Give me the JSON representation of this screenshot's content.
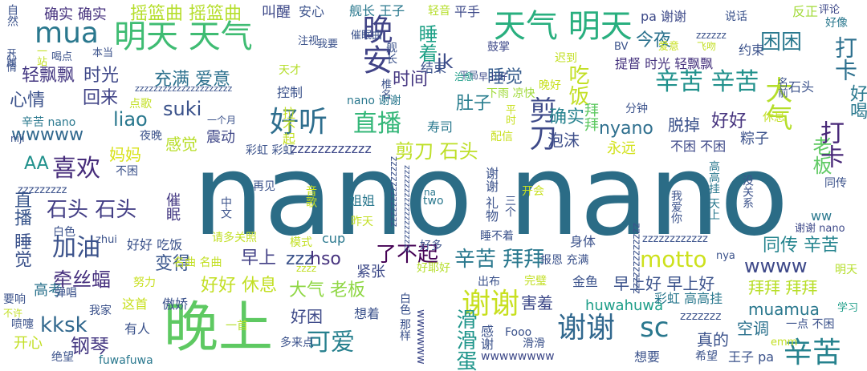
{
  "words": [
    {
      "text": "nano nano",
      "color": "#2b6c86"
    },
    {
      "text": "晚上",
      "color": "#5ec962"
    },
    {
      "text": "明天 天气",
      "color": "#3fbc73"
    },
    {
      "text": "天气 明天",
      "color": "#29af7f"
    },
    {
      "text": "mua",
      "color": "#2a788e"
    },
    {
      "text": "晚安",
      "color": "#414487"
    },
    {
      "text": "好听",
      "color": "#2e6e8e"
    },
    {
      "text": "直播",
      "color": "#35b779"
    },
    {
      "text": "睡着",
      "color": "#1fa187"
    },
    {
      "text": "剪刀",
      "color": "#3e4a89"
    },
    {
      "text": "大气",
      "color": "#b5de2b"
    },
    {
      "text": "老板",
      "color": "#5ec962"
    },
    {
      "text": "打卡",
      "color": "#2d708e"
    },
    {
      "text": "打卡",
      "color": "#482878"
    },
    {
      "text": "困困",
      "color": "#2a788e"
    },
    {
      "text": "辛苦 辛苦",
      "color": "#21918c"
    },
    {
      "text": "好喝",
      "color": "#2a788e"
    },
    {
      "text": "谢谢",
      "color": "#c8e020"
    },
    {
      "text": "谢谢",
      "color": "#31688e"
    },
    {
      "text": "辛苦",
      "color": "#26828e"
    },
    {
      "text": "sc",
      "color": "#2a788e"
    },
    {
      "text": "motto",
      "color": "#cde11d"
    },
    {
      "text": "可爱",
      "color": "#27808e"
    },
    {
      "text": "滑滑蛋",
      "color": "#1f958b"
    },
    {
      "text": "喜欢",
      "color": "#472d7b"
    },
    {
      "text": "加油",
      "color": "#3b528b"
    },
    {
      "text": "kksk",
      "color": "#31688e"
    },
    {
      "text": "wwww",
      "color": "#3e4989"
    },
    {
      "text": "同传 辛苦",
      "color": "#25848e"
    },
    {
      "text": "辛苦 拜拜",
      "color": "#2a788e"
    },
    {
      "text": "了不起",
      "color": "#440154"
    },
    {
      "text": "早上",
      "color": "#424086"
    },
    {
      "text": "zzz",
      "color": "#3b528b"
    },
    {
      "text": "hso",
      "color": "#46337e"
    },
    {
      "text": "大气 老板",
      "color": "#8fd744"
    },
    {
      "text": "好困",
      "color": "#3e4a89"
    },
    {
      "text": "石头 石头",
      "color": "#433e85"
    },
    {
      "text": "牵丝蝠",
      "color": "#46307e"
    },
    {
      "text": "变得",
      "color": "#39568c"
    },
    {
      "text": "好好 休息",
      "color": "#c2df23"
    },
    {
      "text": "钢琴",
      "color": "#453882"
    },
    {
      "text": "确实",
      "color": "#26828e"
    },
    {
      "text": "好好",
      "color": "#46337e"
    },
    {
      "text": "剪刀 石头",
      "color": "#bddf26"
    },
    {
      "text": "肚子",
      "color": "#287d8e"
    },
    {
      "text": "时间",
      "color": "#453781"
    },
    {
      "text": "jk",
      "color": "#3d4d8a"
    },
    {
      "text": "睡觉",
      "color": "#365c8d"
    },
    {
      "text": "今夜",
      "color": "#2c728e"
    },
    {
      "text": "吃饭",
      "color": "#c2df23"
    },
    {
      "text": "充满 爱意",
      "color": "#2d718e"
    },
    {
      "text": "suki",
      "color": "#3b528b"
    },
    {
      "text": "liao",
      "color": "#2a788e"
    },
    {
      "text": "回来",
      "color": "#414487"
    },
    {
      "text": "时光",
      "color": "#3f4889"
    },
    {
      "text": "轻飘飘",
      "color": "#453882"
    },
    {
      "text": "心情",
      "color": "#3b528b"
    },
    {
      "text": "wwwww",
      "color": "#31688e"
    },
    {
      "text": "感觉",
      "color": "#b8de29"
    },
    {
      "text": "震动",
      "color": "#3f4788"
    },
    {
      "text": "AA",
      "color": "#21918c"
    },
    {
      "text": "妈妈",
      "color": "#d8e219"
    },
    {
      "text": "nyano",
      "color": "#2e6f8e"
    },
    {
      "text": "拜拜",
      "color": "#5ec962"
    },
    {
      "text": "泡沫",
      "color": "#3d4e8a"
    },
    {
      "text": "粽子",
      "color": "#3b528b"
    },
    {
      "text": "脱掉",
      "color": "#3b528b"
    },
    {
      "text": "不困 不困",
      "color": "#3e4989"
    },
    {
      "text": "永远",
      "color": "#d2e21b"
    },
    {
      "text": "早上好 早上好",
      "color": "#3b528b"
    },
    {
      "text": "拜拜 拜拜",
      "color": "#b8de29"
    },
    {
      "text": "muamua",
      "color": "#2a788e"
    },
    {
      "text": "huwahuwa",
      "color": "#1f9e89"
    },
    {
      "text": "害羞",
      "color": "#3e4a89"
    },
    {
      "text": "空调",
      "color": "#2c728e"
    },
    {
      "text": "真的",
      "color": "#3b528b"
    },
    {
      "text": "zzzzzzz",
      "color": "#3b528b"
    },
    {
      "text": "zzzzzzzzzzzz",
      "color": "#3e4989"
    },
    {
      "text": "ww",
      "color": "#2a788e"
    },
    {
      "text": "cup",
      "color": "#2a788e"
    },
    {
      "text": "紧张",
      "color": "#3e4a89"
    },
    {
      "text": "身体",
      "color": "#3b528b"
    },
    {
      "text": "直播",
      "color": "#39568c"
    },
    {
      "text": "睡觉",
      "color": "#3b528b"
    },
    {
      "text": "催眠",
      "color": "#443983"
    },
    {
      "text": "高考",
      "color": "#2c738e"
    },
    {
      "text": "确实 确实",
      "color": "#46327e"
    },
    {
      "text": "摇篮曲 摇篮曲",
      "color": "#b5de2b"
    },
    {
      "text": "叫醒",
      "color": "#3e4989"
    },
    {
      "text": "安心",
      "color": "#3b528b"
    },
    {
      "text": "舰长 王子",
      "color": "#2a788e"
    },
    {
      "text": "轻音",
      "color": "#b5de2b"
    },
    {
      "text": "平手",
      "color": "#3e4a89"
    },
    {
      "text": "说话",
      "color": "#3b528b"
    },
    {
      "text": "反正",
      "color": "#a2da37"
    },
    {
      "text": "评论",
      "color": "#3e4989"
    },
    {
      "text": "好像",
      "color": "#2a788e"
    },
    {
      "text": "约束",
      "color": "#3b528b"
    },
    {
      "text": "石头",
      "color": "#3b528b"
    },
    {
      "text": "提督 时光 轻飘飘",
      "color": "#46337e"
    },
    {
      "text": "pa 谢谢",
      "color": "#3e4a89"
    },
    {
      "text": "zzzzzz",
      "color": "#3b528b"
    },
    {
      "text": "结束",
      "color": "#3b528b"
    },
    {
      "text": "鼓掌",
      "color": "#3e4989"
    },
    {
      "text": "平局",
      "color": "#3b528b"
    },
    {
      "text": "迟到",
      "color": "#c2df23"
    },
    {
      "text": "早上好",
      "color": "#3e4989"
    },
    {
      "text": "晚好",
      "color": "#c8e020"
    },
    {
      "text": "治愈",
      "color": "#1f9e89"
    },
    {
      "text": "天才",
      "color": "#b5de2b"
    },
    {
      "text": "控制",
      "color": "#3b528b"
    },
    {
      "text": "nano 谢谢",
      "color": "#2a788e"
    },
    {
      "text": "下雨 凉快",
      "color": "#a0da39"
    },
    {
      "text": "寿司",
      "color": "#2a788e"
    },
    {
      "text": "配信",
      "color": "#c8e020"
    },
    {
      "text": "分钟",
      "color": "#3b528b"
    },
    {
      "text": "一个月",
      "color": "#3b528b"
    },
    {
      "text": "休息",
      "color": "#c2df23"
    },
    {
      "text": "名曲 名曲",
      "color": "#c2df23"
    },
    {
      "text": "报恩 充满",
      "color": "#3b528b"
    },
    {
      "text": "同传",
      "color": "#3b528b"
    },
    {
      "text": "谢谢 nano",
      "color": "#3e4989"
    },
    {
      "text": "明天",
      "color": "#b5de2b"
    },
    {
      "text": "学习",
      "color": "#1f9e89"
    },
    {
      "text": "一点 不困",
      "color": "#3b528b"
    },
    {
      "text": "希望",
      "color": "#3b528b"
    },
    {
      "text": "王子 pa",
      "color": "#3b528b"
    },
    {
      "text": "想要",
      "color": "#3b528b"
    },
    {
      "text": "fuwafuwa",
      "color": "#2a788e"
    },
    {
      "text": "Fooo",
      "color": "#3b528b"
    },
    {
      "text": "想着",
      "color": "#3b528b"
    },
    {
      "text": "多来点",
      "color": "#3b528b"
    },
    {
      "text": "开心",
      "color": "#c2df23"
    },
    {
      "text": "绝望",
      "color": "#3b528b"
    },
    {
      "text": "一首",
      "color": "#b5de2b"
    },
    {
      "text": "傲娇",
      "color": "#3b528b"
    },
    {
      "text": "有人",
      "color": "#3b528b"
    },
    {
      "text": "这首",
      "color": "#c8e020"
    },
    {
      "text": "我家",
      "color": "#3b528b"
    },
    {
      "text": "弹唱",
      "color": "#3b528b"
    },
    {
      "text": "要响",
      "color": "#3b528b"
    },
    {
      "text": "努力",
      "color": "#c8e020"
    },
    {
      "text": "出布",
      "color": "#3b528b"
    },
    {
      "text": "完璧",
      "color": "#c2df23"
    },
    {
      "text": "金鱼",
      "color": "#3b528b"
    },
    {
      "text": "彩虹 高高挂",
      "color": "#2a788e"
    },
    {
      "text": "好耶好",
      "color": "#b5de2b"
    },
    {
      "text": "好多",
      "color": "#3b528b"
    },
    {
      "text": "模式",
      "color": "#c2df23"
    },
    {
      "text": "请多关照",
      "color": "#c2df23"
    },
    {
      "text": "好好 吃饭",
      "color": "#3b528b"
    },
    {
      "text": "白色",
      "color": "#3b528b"
    },
    {
      "text": "zhui",
      "color": "#3b528b"
    },
    {
      "text": "再见",
      "color": "#3b528b"
    },
    {
      "text": "睡不着",
      "color": "#3b528b"
    },
    {
      "text": "开会",
      "color": "#c8e020"
    },
    {
      "text": "姐姐",
      "color": "#2a788e"
    },
    {
      "text": "two",
      "color": "#2a788e"
    },
    {
      "text": "na",
      "color": "#2a788e"
    },
    {
      "text": "我爱你",
      "color": "#3b528b"
    },
    {
      "text": "没关系",
      "color": "#3b528b"
    },
    {
      "text": "高高挂 天上",
      "color": "#2a788e"
    },
    {
      "text": "彩虹 彩虹",
      "color": "#3b528b"
    },
    {
      "text": "夜晚",
      "color": "#3b528b"
    },
    {
      "text": "不困",
      "color": "#3b528b"
    },
    {
      "text": "辛苦 nano",
      "color": "#2a788e"
    },
    {
      "text": "niji",
      "color": "#3b528b"
    },
    {
      "text": "点歌",
      "color": "#c2df23"
    },
    {
      "text": "一站",
      "color": "#c2df23"
    },
    {
      "text": "喝点",
      "color": "#3b528b"
    },
    {
      "text": "本当",
      "color": "#3b528b"
    },
    {
      "text": "注视",
      "color": "#3b528b"
    },
    {
      "text": "我要",
      "color": "#3b528b"
    },
    {
      "text": "催眠曲",
      "color": "#3b528b"
    },
    {
      "text": "BV",
      "color": "#3b528b"
    },
    {
      "text": "爱意",
      "color": "#c8e020"
    },
    {
      "text": "飞吻",
      "color": "#c2df23"
    },
    {
      "text": "zzzzzzzzzzzzzzzzzzzzz",
      "color": "#3b528b"
    },
    {
      "text": "zzzzzzzzzzzz",
      "color": "#3b528b"
    },
    {
      "text": "zzzzzzzzzzzzz",
      "color": "#3b528b"
    },
    {
      "text": "zzzzzzzzzzzzzz",
      "color": "#3b528b"
    },
    {
      "text": "zzzzzzzzzzzzzzzzzzz",
      "color": "#3b528b"
    },
    {
      "text": "zzzzzzzzz",
      "color": "#3b528b"
    },
    {
      "text": "zzzz",
      "color": "#c2df23"
    },
    {
      "text": "wwwwwwww",
      "color": "#3e4989"
    },
    {
      "text": "wwwwww",
      "color": "#3e4989"
    },
    {
      "text": "拉不起",
      "color": "#c2df23"
    },
    {
      "text": "谢谢 礼物",
      "color": "#3b528b"
    },
    {
      "text": "中文",
      "color": "#3b528b"
    },
    {
      "text": "音歌",
      "color": "#c8e020"
    },
    {
      "text": "昨天",
      "color": "#c2df23"
    },
    {
      "text": "三个",
      "color": "#3b528b"
    },
    {
      "text": "白色 那样",
      "color": "#3b528b"
    },
    {
      "text": "感谢",
      "color": "#3b528b"
    },
    {
      "text": "滑滑",
      "color": "#3b528b"
    },
    {
      "text": "emm",
      "color": "#c2df23"
    },
    {
      "text": "nya",
      "color": "#3b528b"
    },
    {
      "text": "喷嚏",
      "color": "#3b528b"
    },
    {
      "text": "不许",
      "color": "#c2df23"
    },
    {
      "text": "名前",
      "color": "#3b528b"
    },
    {
      "text": "心情",
      "color": "#3b528b"
    },
    {
      "text": "舰长",
      "color": "#3b528b"
    },
    {
      "text": "椎名",
      "color": "#3b528b"
    },
    {
      "text": "平时",
      "color": "#c8e020"
    },
    {
      "text": "自然",
      "color": "#3b528b"
    },
    {
      "text": "开朗",
      "color": "#3b528b"
    }
  ]
}
